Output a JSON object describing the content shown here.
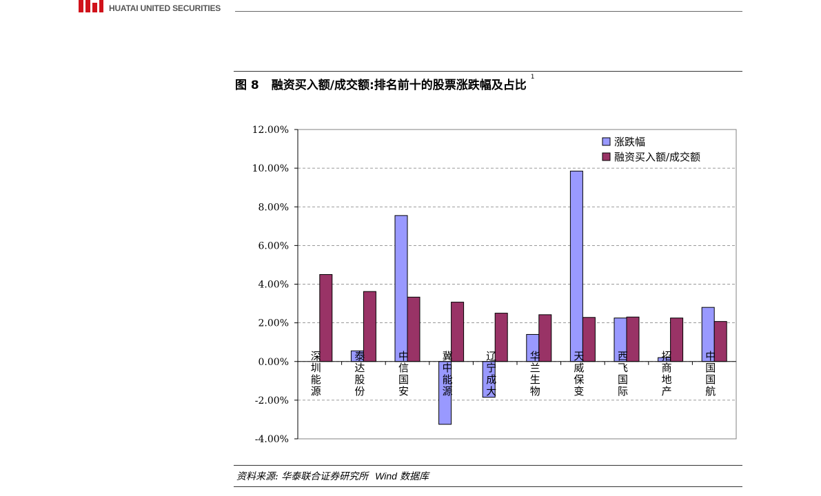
{
  "header": {
    "logo_text": "HUATAI UNITED SECURITIES",
    "logo_color": "#d0121b"
  },
  "figure": {
    "label": "图 8",
    "title": "融资买入额/成交额:排名前十的股票涨跌幅及占比",
    "footnote": "1"
  },
  "source": {
    "prefix": "资料来源: 华泰联合证券研究所",
    "wind": "Wind",
    "suffix": "数据库"
  },
  "chart_data": {
    "type": "bar",
    "categories": [
      "深圳能源",
      "泰达股份",
      "中信国安",
      "冀中能源",
      "辽宁成大",
      "华兰生物",
      "天威保变",
      "西飞国际",
      "招商地产",
      "中国国航"
    ],
    "series": [
      {
        "name": "涨跌幅",
        "color": "#9999ff",
        "values": [
          0.0,
          0.55,
          7.55,
          -3.25,
          -1.85,
          1.4,
          9.85,
          2.25,
          0.2,
          2.8
        ]
      },
      {
        "name": "融资买入额/成交额",
        "color": "#993366",
        "values": [
          4.5,
          3.62,
          3.33,
          3.07,
          2.5,
          2.42,
          2.28,
          2.3,
          2.25,
          2.07
        ]
      }
    ],
    "ylim": [
      -4,
      12
    ],
    "yticks": [
      12,
      10,
      8,
      6,
      4,
      2,
      0,
      -2,
      -4
    ],
    "ytick_labels": [
      "12.00%",
      "10.00%",
      "8.00%",
      "6.00%",
      "4.00%",
      "2.00%",
      "0.00%",
      "-2.00%",
      "-4.00%"
    ],
    "grid": true,
    "legend_position": "top-right"
  }
}
